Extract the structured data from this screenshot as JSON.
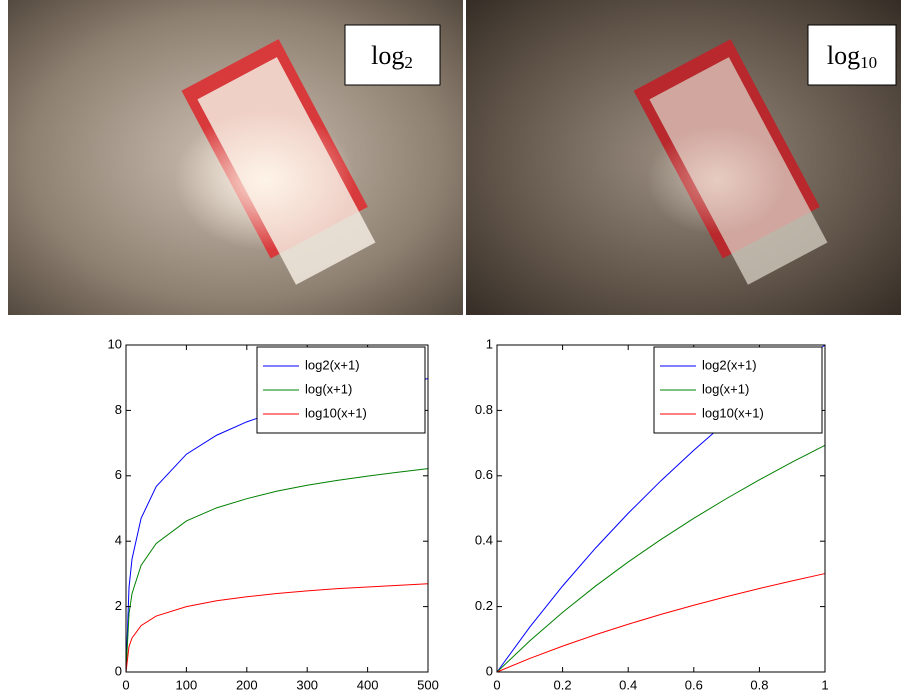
{
  "images": [
    {
      "label": {
        "base": "log",
        "subscript": "2"
      }
    },
    {
      "label": {
        "base": "log",
        "subscript": "10"
      }
    }
  ],
  "chart_data": [
    {
      "type": "line",
      "x": [
        0,
        5,
        10,
        25,
        50,
        100,
        150,
        200,
        250,
        300,
        350,
        400,
        450,
        500
      ],
      "series": [
        {
          "name": "log2(x+1)",
          "color": "#0000ff",
          "values": [
            0,
            2.59,
            3.46,
            4.7,
            5.67,
            6.66,
            7.24,
            7.65,
            7.97,
            8.24,
            8.46,
            8.65,
            8.82,
            8.97
          ]
        },
        {
          "name": "log(x+1)",
          "color": "#008000",
          "values": [
            0,
            1.79,
            2.4,
            3.26,
            3.93,
            4.62,
            5.02,
            5.3,
            5.53,
            5.71,
            5.86,
            5.99,
            6.11,
            6.22
          ]
        },
        {
          "name": "log10(x+1)",
          "color": "#ff0000",
          "values": [
            0,
            0.78,
            1.04,
            1.42,
            1.71,
            2.0,
            2.18,
            2.3,
            2.4,
            2.48,
            2.55,
            2.6,
            2.65,
            2.7
          ]
        }
      ],
      "xlim": [
        0,
        500
      ],
      "xticks": [
        0,
        100,
        200,
        300,
        400,
        500
      ],
      "ylim": [
        0,
        10
      ],
      "yticks": [
        0,
        2,
        4,
        6,
        8,
        10
      ],
      "legend": "upper right"
    },
    {
      "type": "line",
      "x": [
        0,
        0.1,
        0.2,
        0.3,
        0.4,
        0.5,
        0.6,
        0.7,
        0.8,
        0.9,
        1
      ],
      "series": [
        {
          "name": "log2(x+1)",
          "color": "#0000ff",
          "values": [
            0,
            0.1375,
            0.263,
            0.3785,
            0.4854,
            0.585,
            0.678,
            0.766,
            0.848,
            0.926,
            1
          ]
        },
        {
          "name": "log(x+1)",
          "color": "#008000",
          "values": [
            0,
            0.0953,
            0.1823,
            0.2624,
            0.3365,
            0.4055,
            0.47,
            0.5306,
            0.5878,
            0.6419,
            0.6931
          ]
        },
        {
          "name": "log10(x+1)",
          "color": "#ff0000",
          "values": [
            0,
            0.0414,
            0.0792,
            0.1139,
            0.1461,
            0.1761,
            0.2041,
            0.2304,
            0.2553,
            0.2788,
            0.301
          ]
        }
      ],
      "xlim": [
        0,
        1
      ],
      "xticks": [
        0,
        0.2,
        0.4,
        0.6,
        0.8,
        1
      ],
      "ylim": [
        0,
        1
      ],
      "yticks": [
        0,
        0.2,
        0.4,
        0.6,
        0.8,
        1
      ],
      "legend": "upper right"
    }
  ]
}
